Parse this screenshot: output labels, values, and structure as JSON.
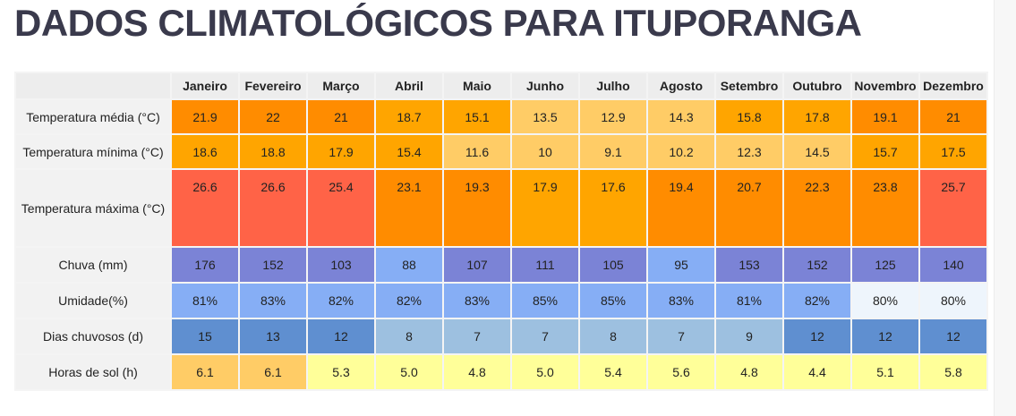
{
  "title": "DADOS CLIMATOLÓGICOS PARA ITUPORANGA",
  "months": [
    "Janeiro",
    "Fevereiro",
    "Março",
    "Abril",
    "Maio",
    "Junho",
    "Julho",
    "Agosto",
    "Setembro",
    "Outubro",
    "Novembro",
    "Dezembro"
  ],
  "rows": [
    {
      "key": "tmed",
      "label": "Temperatura média (°C)",
      "values": [
        "21.9",
        "22",
        "21",
        "18.7",
        "15.1",
        "13.5",
        "12.9",
        "14.3",
        "15.8",
        "17.8",
        "19.1",
        "21"
      ],
      "colors": [
        "#ff8c00",
        "#ff8c00",
        "#ff8c00",
        "#ffa500",
        "#ffa500",
        "#ffcc66",
        "#ffcc66",
        "#ffcc66",
        "#ffa500",
        "#ffa500",
        "#ff8c00",
        "#ff8c00"
      ]
    },
    {
      "key": "tmin",
      "label": "Temperatura mínima (°C)",
      "values": [
        "18.6",
        "18.8",
        "17.9",
        "15.4",
        "11.6",
        "10",
        "9.1",
        "10.2",
        "12.3",
        "14.5",
        "15.7",
        "17.5"
      ],
      "colors": [
        "#ffa500",
        "#ffa500",
        "#ffa500",
        "#ffa500",
        "#ffcc66",
        "#ffcc66",
        "#ffcc66",
        "#ffcc66",
        "#ffcc66",
        "#ffcc66",
        "#ffa500",
        "#ffa500"
      ]
    },
    {
      "key": "tmax",
      "label": "Temperatura máxima (°C)",
      "values": [
        "26.6",
        "26.6",
        "25.4",
        "23.1",
        "19.3",
        "17.9",
        "17.6",
        "19.4",
        "20.7",
        "22.3",
        "23.8",
        "25.7"
      ],
      "colors": [
        "#ff6347",
        "#ff6347",
        "#ff6347",
        "#ff8c00",
        "#ff8c00",
        "#ffa500",
        "#ffa500",
        "#ff8c00",
        "#ff8c00",
        "#ff8c00",
        "#ff8c00",
        "#ff6347"
      ]
    },
    {
      "key": "chuva",
      "label": "Chuva (mm)",
      "values": [
        "176",
        "152",
        "103",
        "88",
        "107",
        "111",
        "105",
        "95",
        "153",
        "152",
        "125",
        "140"
      ],
      "colors": [
        "#7b83d6",
        "#7b83d6",
        "#7b83d6",
        "#86aef5",
        "#7b83d6",
        "#7b83d6",
        "#7b83d6",
        "#86aef5",
        "#7b83d6",
        "#7b83d6",
        "#7b83d6",
        "#7b83d6"
      ]
    },
    {
      "key": "umid",
      "label": "Umidade(%)",
      "values": [
        "81%",
        "83%",
        "82%",
        "82%",
        "83%",
        "85%",
        "85%",
        "83%",
        "81%",
        "82%",
        "80%",
        "80%"
      ],
      "colors": [
        "#86aef5",
        "#86aef5",
        "#86aef5",
        "#86aef5",
        "#86aef5",
        "#86aef5",
        "#86aef5",
        "#86aef5",
        "#86aef5",
        "#86aef5",
        "#eef5fc",
        "#eef5fc"
      ]
    },
    {
      "key": "dias",
      "label": "Dias chuvosos (d)",
      "values": [
        "15",
        "13",
        "12",
        "8",
        "7",
        "7",
        "8",
        "7",
        "9",
        "12",
        "12",
        "12"
      ],
      "colors": [
        "#5f8fd0",
        "#5f8fd0",
        "#5f8fd0",
        "#9dc0e0",
        "#9dc0e0",
        "#9dc0e0",
        "#9dc0e0",
        "#9dc0e0",
        "#9dc0e0",
        "#5f8fd0",
        "#5f8fd0",
        "#5f8fd0"
      ]
    },
    {
      "key": "sol",
      "label": "Horas de sol (h)",
      "values": [
        "6.1",
        "6.1",
        "5.3",
        "5.0",
        "4.8",
        "5.0",
        "5.4",
        "5.6",
        "4.8",
        "4.4",
        "5.1",
        "5.8"
      ],
      "colors": [
        "#ffcc66",
        "#ffcc66",
        "#ffff99",
        "#ffff99",
        "#ffff99",
        "#ffff99",
        "#ffff99",
        "#ffff99",
        "#ffff99",
        "#ffff99",
        "#ffff99",
        "#ffff99"
      ]
    }
  ]
}
